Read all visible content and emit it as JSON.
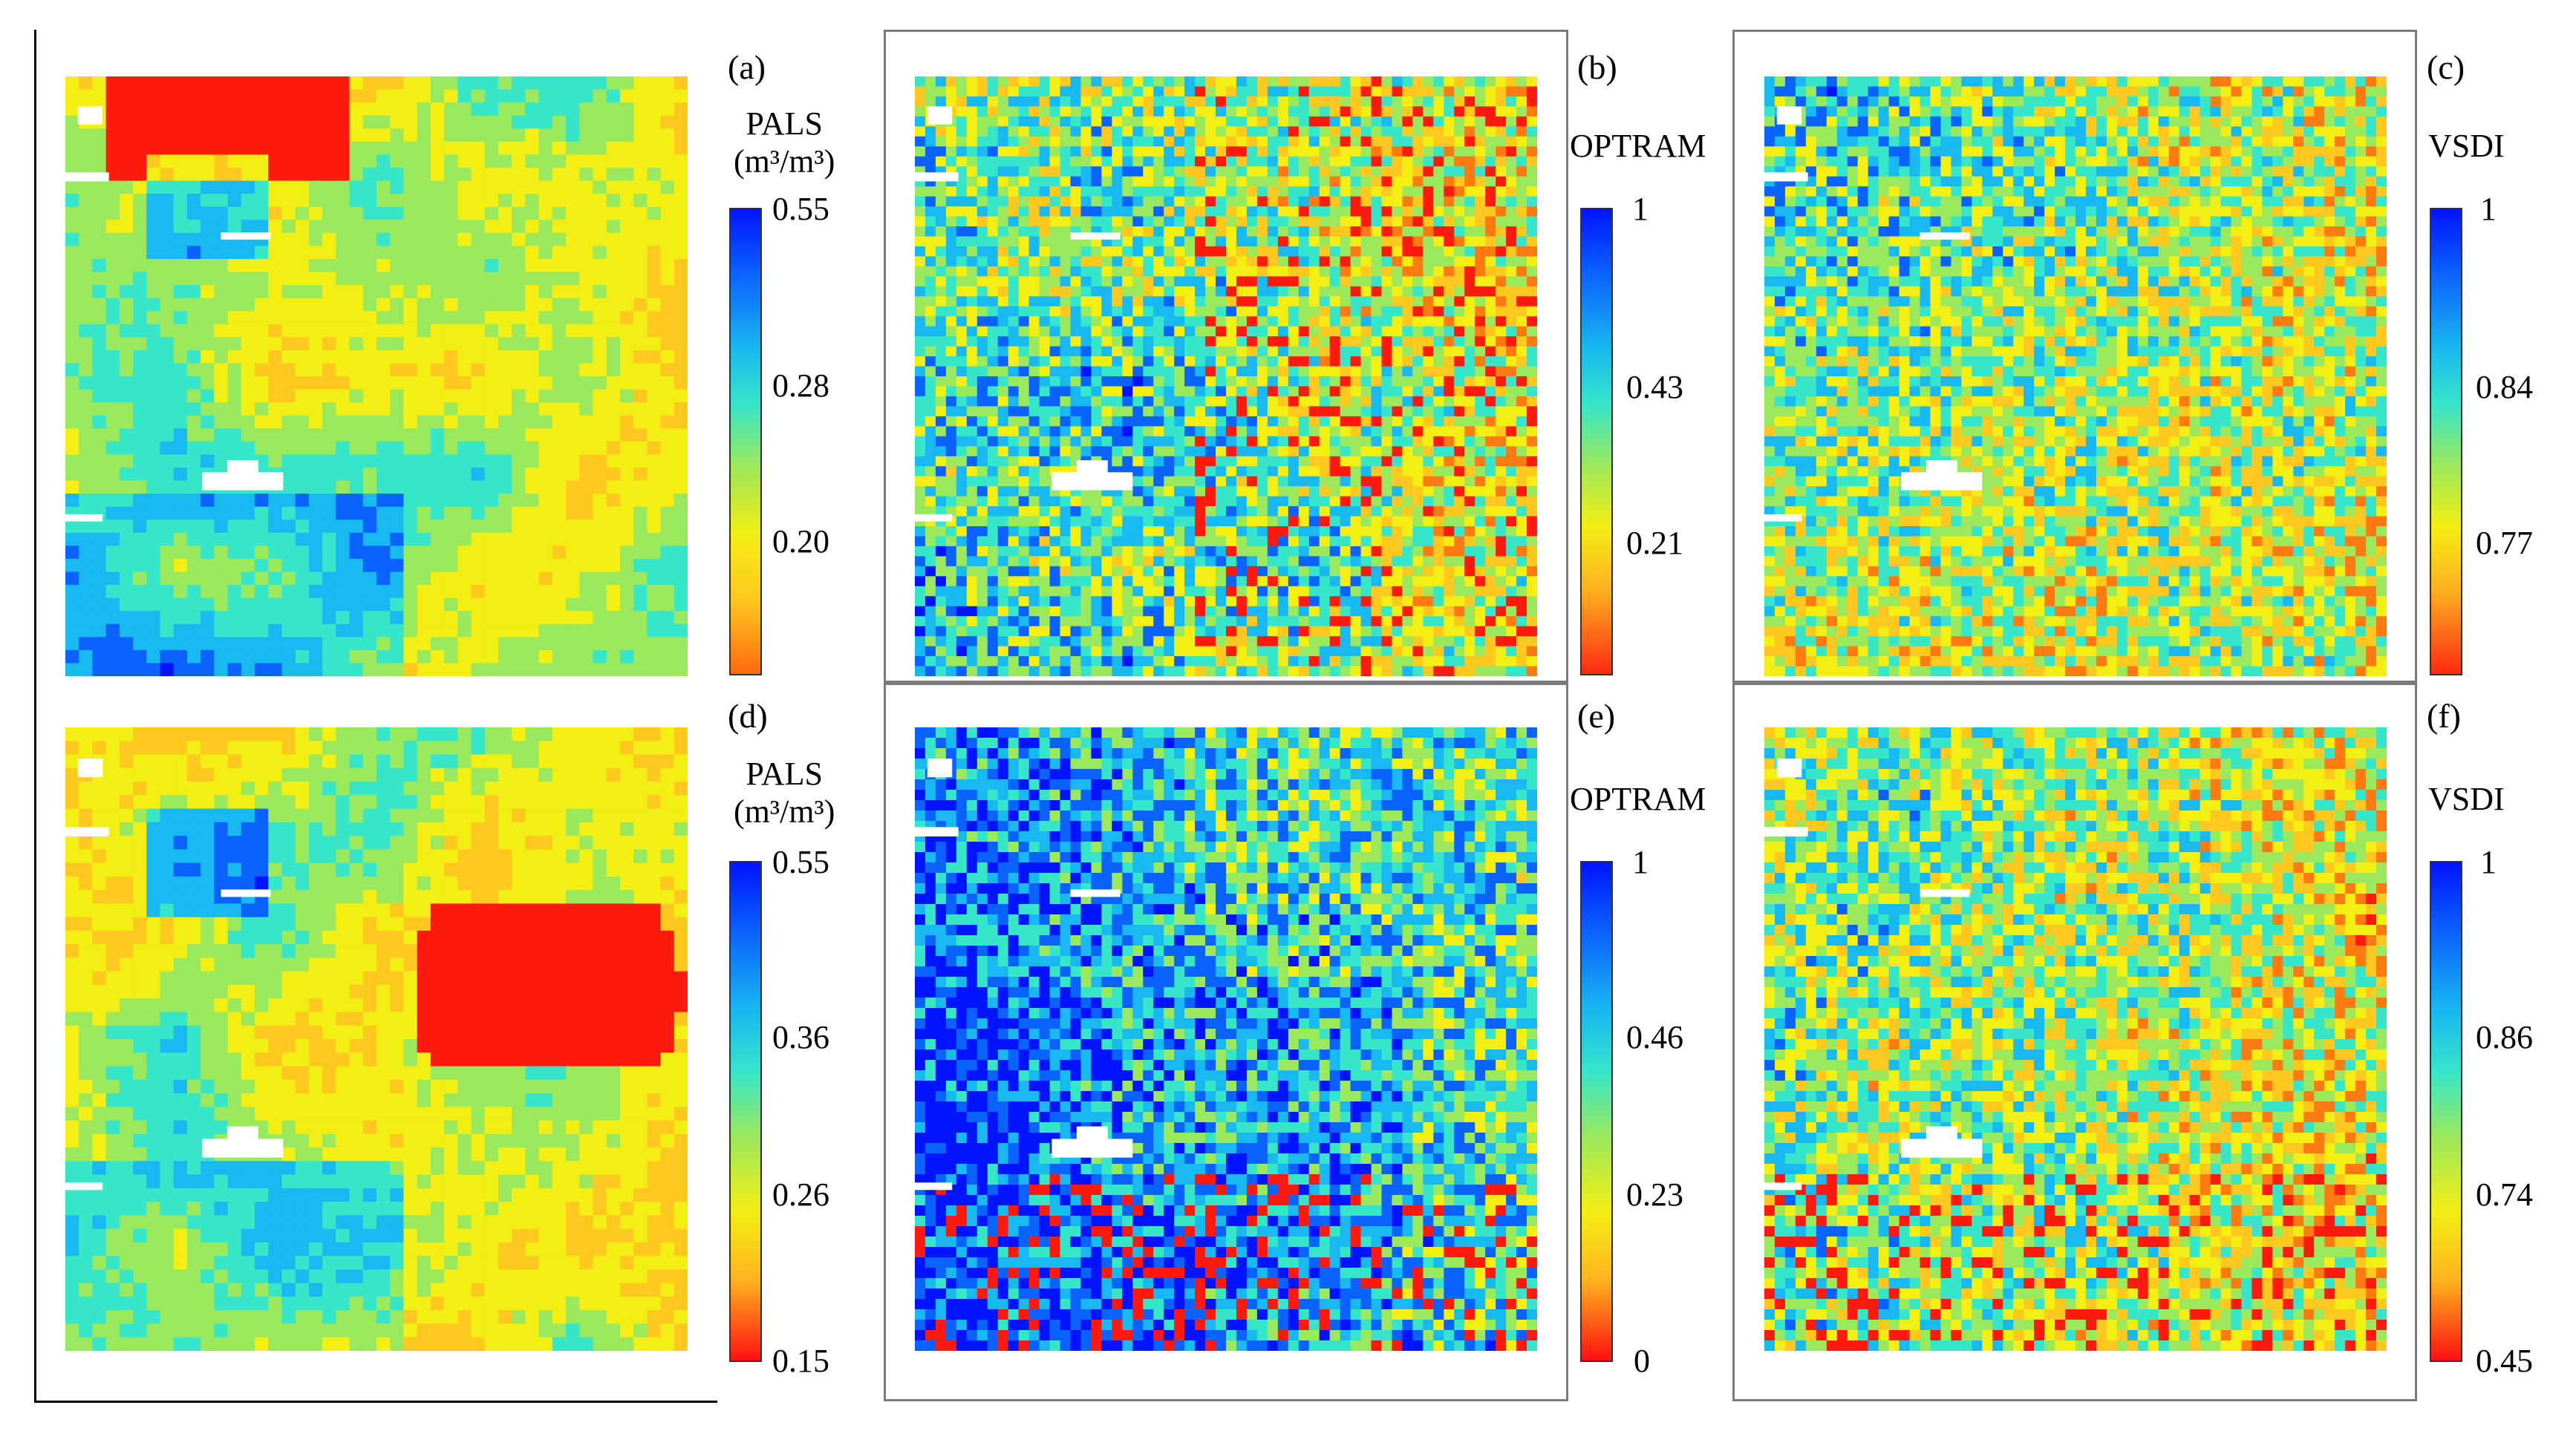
{
  "figure": {
    "panels": [
      {
        "id": "a",
        "label": "(a)",
        "title": "PALS",
        "unit": "(m³/m³)",
        "ticks": [
          "0.55",
          "0.28",
          "0.20"
        ],
        "palette": "cool",
        "seed": 11,
        "wet_blob": "top"
      },
      {
        "id": "b",
        "label": "(b)",
        "title": "OPTRAM",
        "unit": "",
        "ticks": [
          "1",
          "0.43",
          "0.21"
        ],
        "palette": "fields-mixed",
        "seed": 23
      },
      {
        "id": "c",
        "label": "(c)",
        "title": "VSDI",
        "unit": "",
        "ticks": [
          "1",
          "0.84",
          "0.77"
        ],
        "palette": "fields-cyan",
        "seed": 37
      },
      {
        "id": "d",
        "label": "(d)",
        "title": "PALS",
        "unit": "(m³/m³)",
        "ticks": [
          "0.55",
          "0.36",
          "0.26",
          "0.15"
        ],
        "palette": "cool",
        "seed": 53,
        "wet_blob": "right"
      },
      {
        "id": "e",
        "label": "(e)",
        "title": "OPTRAM",
        "unit": "",
        "ticks": [
          "1",
          "0.46",
          "0.23",
          "0"
        ],
        "palette": "fields-dry",
        "seed": 71
      },
      {
        "id": "f",
        "label": "(f)",
        "title": "VSDI",
        "unit": "",
        "ticks": [
          "1",
          "0.86",
          "0.74",
          "0.45"
        ],
        "palette": "fields-cyan-blue",
        "seed": 89
      }
    ],
    "colors": {
      "jet": [
        "#0014ff",
        "#0b63ff",
        "#18b8f0",
        "#36e6c9",
        "#9ae85c",
        "#f3ef13",
        "#ffc81e",
        "#ff7a10",
        "#ff1a10"
      ],
      "frame": "#7a7a7a",
      "nodata": "#ffffff"
    }
  }
}
